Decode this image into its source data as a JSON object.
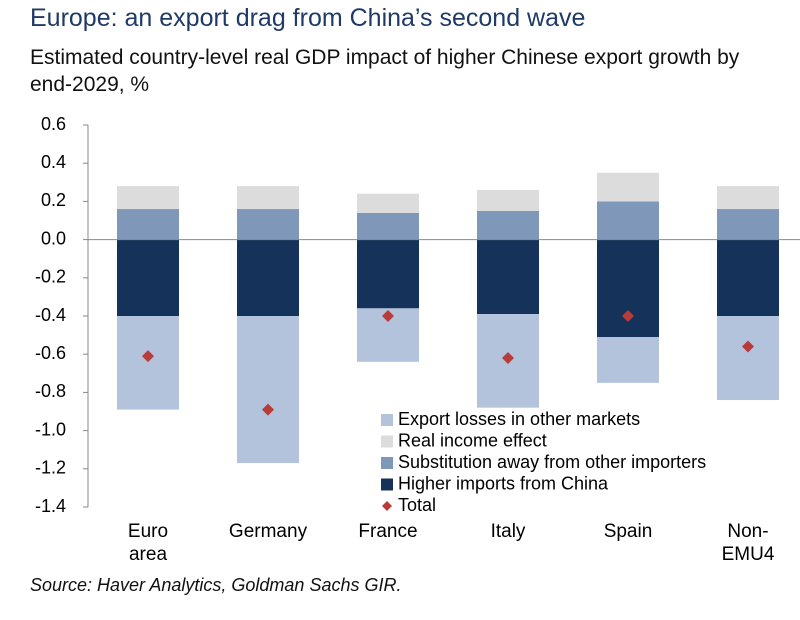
{
  "chart_data": {
    "type": "bar",
    "title": "Europe: an export drag from China’s second wave",
    "subtitle": "Estimated country-level real GDP impact of higher Chinese export growth by end-2029, %",
    "source": "Source: Haver Analytics, Goldman Sachs GIR.",
    "categories": [
      "Euro area",
      "Germany",
      "France",
      "Italy",
      "Spain",
      "Non-EMU4"
    ],
    "stacked": true,
    "series": [
      {
        "name": "Export losses in other markets",
        "color": "#b4c3dc",
        "values": [
          -0.49,
          -0.77,
          -0.28,
          -0.49,
          -0.24,
          -0.44
        ]
      },
      {
        "name": "Real income effect",
        "color": "#dcdcdc",
        "values": [
          0.12,
          0.12,
          0.1,
          0.11,
          0.15,
          0.12
        ]
      },
      {
        "name": "Substitution away from other importers",
        "color": "#7f98b9",
        "values": [
          0.16,
          0.16,
          0.14,
          0.15,
          0.2,
          0.16
        ]
      },
      {
        "name": "Higher imports from China",
        "color": "#14325a",
        "values": [
          -0.4,
          -0.4,
          -0.36,
          -0.39,
          -0.51,
          -0.4
        ]
      },
      {
        "name": "Total",
        "color": "#b83c3a",
        "marker": "diamond",
        "values": [
          -0.61,
          -0.89,
          -0.4,
          -0.62,
          -0.4,
          -0.56
        ]
      }
    ],
    "ylim": [
      -1.4,
      0.6
    ],
    "yticks": [
      {
        "value": 0.6,
        "label": "0.6"
      },
      {
        "value": 0.4,
        "label": "0.4"
      },
      {
        "value": 0.2,
        "label": "0.2"
      },
      {
        "value": 0,
        "label": "0.0"
      },
      {
        "value": -0.2,
        "label": "-0.2"
      },
      {
        "value": -0.4,
        "label": "-0.4"
      },
      {
        "value": -0.6,
        "label": "-0.6"
      },
      {
        "value": -0.8,
        "label": "-0.8"
      },
      {
        "value": -1.0,
        "label": "-1.0"
      },
      {
        "value": -1.2,
        "label": "-1.2"
      },
      {
        "value": -1.4,
        "label": "-1.4"
      }
    ],
    "grid": false,
    "legend_position": "lower-right"
  }
}
